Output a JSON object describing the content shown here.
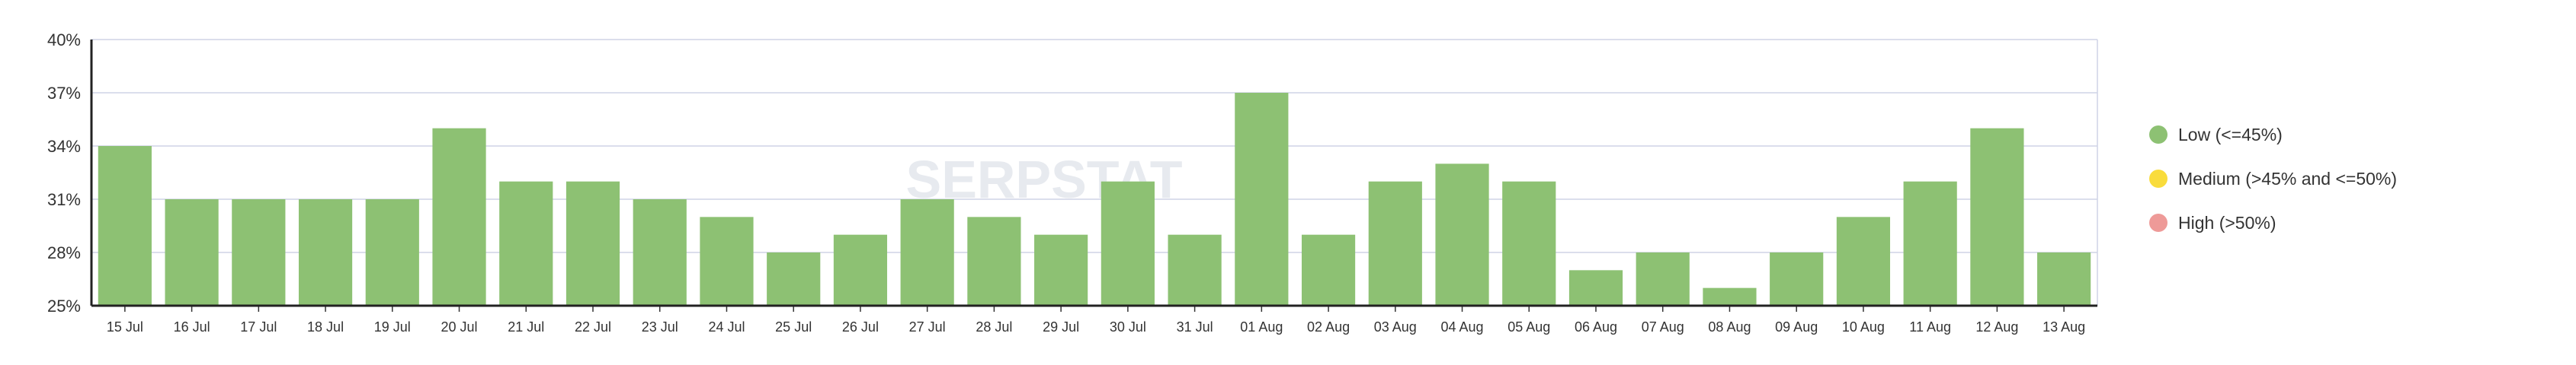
{
  "watermark": "SERPSTAT",
  "chart_data": {
    "type": "bar",
    "categories": [
      "15 Jul",
      "16 Jul",
      "17 Jul",
      "18 Jul",
      "19 Jul",
      "20 Jul",
      "21 Jul",
      "22 Jul",
      "23 Jul",
      "24 Jul",
      "25 Jul",
      "26 Jul",
      "27 Jul",
      "28 Jul",
      "29 Jul",
      "30 Jul",
      "31 Jul",
      "01 Aug",
      "02 Aug",
      "03 Aug",
      "04 Aug",
      "05 Aug",
      "06 Aug",
      "07 Aug",
      "08 Aug",
      "09 Aug",
      "10 Aug",
      "11 Aug",
      "12 Aug",
      "13 Aug"
    ],
    "values": [
      34,
      31,
      31,
      31,
      31,
      35,
      32,
      32,
      31,
      30,
      28,
      29,
      31,
      30,
      29,
      32,
      29,
      37,
      29,
      32,
      33,
      32,
      27,
      28,
      26,
      28,
      30,
      32,
      35,
      28
    ],
    "yticks": [
      25,
      28,
      31,
      34,
      37,
      40
    ],
    "ytick_labels": [
      "25%",
      "28%",
      "31%",
      "34%",
      "37%",
      "40%"
    ],
    "ylim": [
      25,
      40
    ],
    "grid": true,
    "bar_color": "#8dc173",
    "legend_position": "right",
    "legend": [
      {
        "label": "Low (<=45%)",
        "color": "#8dc173"
      },
      {
        "label": "Medium (>45% and <=50%)",
        "color": "#f9dc3c"
      },
      {
        "label": "High (>50%)",
        "color": "#ee9a98"
      }
    ]
  }
}
